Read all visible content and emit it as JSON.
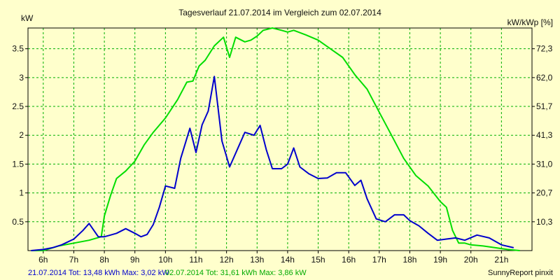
{
  "chart_data": {
    "type": "line",
    "title": "Tagesverlauf 21.07.2014 im Vergleich zum 02.07.2014",
    "ylabel_left": "kW",
    "ylabel_right": "kW/kWp [%]",
    "x_ticks": [
      "6h",
      "7h",
      "8h",
      "9h",
      "10h",
      "11h",
      "12h",
      "13h",
      "14h",
      "15h",
      "16h",
      "17h",
      "18h",
      "19h",
      "20h",
      "21h"
    ],
    "x_tick_hours": [
      6,
      7,
      8,
      9,
      10,
      11,
      12,
      13,
      14,
      15,
      16,
      17,
      18,
      19,
      20,
      21
    ],
    "xlim": [
      5.5,
      22.0
    ],
    "ylim": [
      0,
      3.86
    ],
    "y_ticks": [
      0.5,
      1,
      1.5,
      2,
      2.5,
      3,
      3.5
    ],
    "y_tick_labels": [
      "0.5",
      "1",
      "1.5",
      "2",
      "2.5",
      "3",
      "3.5"
    ],
    "y2_ticks": [
      0.5,
      1.0,
      1.5,
      2.0,
      2.5,
      3.0,
      3.5
    ],
    "y2_tick_labels": [
      "10,3",
      "20,7",
      "31,0",
      "41,3",
      "51,7",
      "62,0",
      "72,3"
    ],
    "grid": true,
    "series": [
      {
        "name": "21.07.2014",
        "color": "#0000cc",
        "x": [
          5.6,
          6.0,
          6.3,
          6.6,
          7.0,
          7.3,
          7.5,
          7.8,
          8.0,
          8.2,
          8.4,
          8.7,
          9.0,
          9.2,
          9.4,
          9.6,
          9.8,
          10.0,
          10.3,
          10.5,
          10.8,
          11.0,
          11.2,
          11.4,
          11.6,
          11.85,
          12.1,
          12.35,
          12.6,
          12.9,
          13.1,
          13.3,
          13.5,
          13.8,
          14.0,
          14.2,
          14.4,
          14.7,
          15.0,
          15.3,
          15.6,
          15.9,
          16.2,
          16.4,
          16.6,
          16.9,
          17.2,
          17.5,
          17.8,
          18.0,
          18.3,
          18.6,
          18.9,
          19.2,
          19.5,
          19.8,
          20.2,
          20.6,
          21.0,
          21.4
        ],
        "y": [
          0.0,
          0.02,
          0.05,
          0.1,
          0.2,
          0.35,
          0.47,
          0.24,
          0.24,
          0.27,
          0.3,
          0.38,
          0.3,
          0.24,
          0.28,
          0.45,
          0.75,
          1.12,
          1.08,
          1.6,
          2.12,
          1.7,
          2.18,
          2.42,
          3.02,
          1.9,
          1.45,
          1.75,
          2.05,
          2.0,
          2.17,
          1.75,
          1.42,
          1.42,
          1.5,
          1.78,
          1.45,
          1.33,
          1.25,
          1.26,
          1.35,
          1.35,
          1.13,
          1.22,
          0.9,
          0.55,
          0.5,
          0.62,
          0.62,
          0.52,
          0.43,
          0.3,
          0.18,
          0.2,
          0.22,
          0.18,
          0.27,
          0.22,
          0.1,
          0.05
        ]
      },
      {
        "name": "02.07.2014",
        "color": "#00dd00",
        "x": [
          5.6,
          6.0,
          6.5,
          7.0,
          7.5,
          7.9,
          8.0,
          8.2,
          8.4,
          8.7,
          9.0,
          9.3,
          9.6,
          10.0,
          10.4,
          10.7,
          10.9,
          11.1,
          11.3,
          11.6,
          11.9,
          12.1,
          12.3,
          12.6,
          12.8,
          13.0,
          13.2,
          13.5,
          13.8,
          14.0,
          14.2,
          14.6,
          15.0,
          15.4,
          15.8,
          16.2,
          16.6,
          17.0,
          17.4,
          17.8,
          18.2,
          18.6,
          19.0,
          19.2,
          19.4,
          19.6,
          19.8,
          20.0,
          20.4,
          20.8,
          21.2,
          21.6
        ],
        "y": [
          0.0,
          0.0,
          0.08,
          0.13,
          0.18,
          0.24,
          0.6,
          0.95,
          1.25,
          1.38,
          1.55,
          1.83,
          2.05,
          2.3,
          2.62,
          2.92,
          2.94,
          3.2,
          3.3,
          3.55,
          3.7,
          3.35,
          3.7,
          3.62,
          3.65,
          3.72,
          3.82,
          3.86,
          3.82,
          3.79,
          3.82,
          3.74,
          3.65,
          3.5,
          3.35,
          3.05,
          2.8,
          2.4,
          2.0,
          1.6,
          1.3,
          1.12,
          0.85,
          0.75,
          0.35,
          0.13,
          0.13,
          0.1,
          0.08,
          0.05,
          0.02,
          0.0
        ]
      }
    ],
    "footer": {
      "series1_text": "21.07.2014 Tot: 13,48 kWh Max: 3,02 kW",
      "series2_text": "02.07.2014 Tot: 31,61 kWh Max: 3,86 kW",
      "credit": "SunnyReport pinxit"
    }
  }
}
